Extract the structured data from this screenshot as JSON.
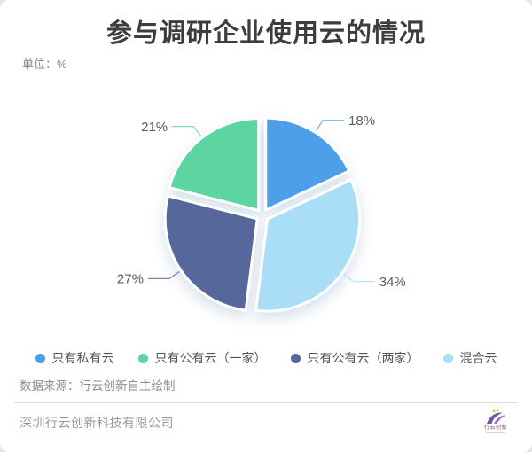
{
  "page": {
    "unit_label": "单位：%",
    "source_note": "数据来源：行云创新自主绘制",
    "footer_company": "深圳行云创新科技有限公司",
    "logo_text": "行云创新"
  },
  "chart_data": {
    "type": "pie",
    "title": "参与调研企业使用云的情况",
    "unit": "%",
    "legend_position": "bottom",
    "start_angle_deg": 0,
    "direction": "clockwise",
    "slices": [
      {
        "label": "只有私有云",
        "value": 18,
        "value_label": "18%",
        "color": "#4C9FE8"
      },
      {
        "label": "混合云",
        "value": 34,
        "value_label": "34%",
        "color": "#AADDF6"
      },
      {
        "label": "只有公有云（两家）",
        "value": 27,
        "value_label": "27%",
        "color": "#56689B"
      },
      {
        "label": "只有公有云（一家）",
        "value": 21,
        "value_label": "21%",
        "color": "#5CD5A1"
      }
    ],
    "legend": [
      {
        "label": "只有私有云",
        "color": "#4C9FE8"
      },
      {
        "label": "只有公有云（一家）",
        "color": "#5CD5A1"
      },
      {
        "label": "只有公有云（两家）",
        "color": "#56689B"
      },
      {
        "label": "混合云",
        "color": "#AADDF6"
      }
    ]
  }
}
